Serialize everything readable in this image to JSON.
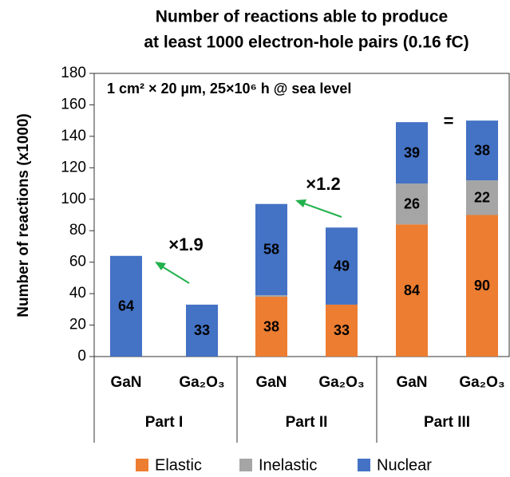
{
  "chart_data": {
    "type": "stacked_bar",
    "title": [
      "Number of reactions able to produce",
      "at least 1000 electron-hole pairs (0.16 fC)"
    ],
    "subtitle": "1 cm² × 20 µm, 25×10⁶ h @ sea level",
    "y_label": "Number of reactions (x1000)",
    "categories": [
      "GaN",
      "Ga₂O₃",
      "GaN",
      "Ga₂O₃",
      "GaN",
      "Ga₂O₃"
    ],
    "groups": [
      "Part I",
      "Part II",
      "Part III"
    ],
    "series": [
      {
        "name": "Elastic",
        "color": "#ed7d31",
        "label_color": "#333333",
        "values": [
          null,
          null,
          38,
          33,
          84,
          90
        ]
      },
      {
        "name": "Inelastic",
        "color": "#a5a5a5",
        "label_color": "#333333",
        "values": [
          null,
          null,
          1,
          null,
          26,
          22
        ]
      },
      {
        "name": "Nuclear",
        "color": "#4472c4",
        "label_color": "#ffffff",
        "values": [
          64,
          33,
          58,
          49,
          39,
          38
        ]
      }
    ],
    "annotations": [
      "×1.9",
      "×1.2",
      "="
    ],
    "annotation_color": "#22b14c",
    "ylim": [
      0,
      180
    ],
    "yticks": [
      0,
      20,
      40,
      60,
      80,
      100,
      120,
      140,
      160,
      180
    ],
    "legend": "bottom"
  }
}
